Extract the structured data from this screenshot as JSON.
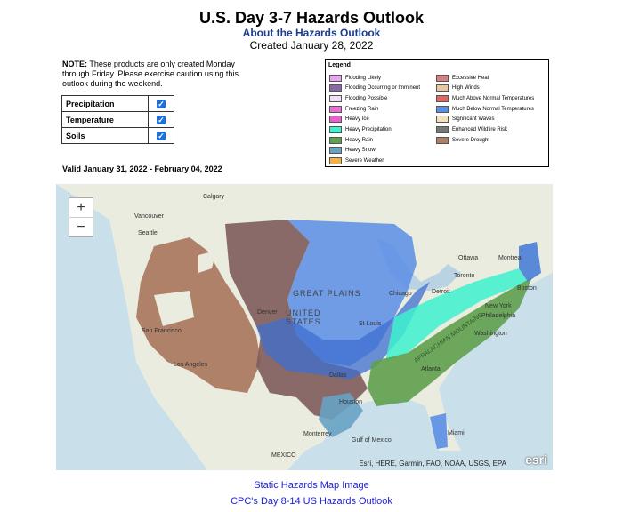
{
  "header": {
    "title": "U.S. Day 3-7 Hazards Outlook",
    "about_link": "About the Hazards Outlook",
    "created": "Created January 28, 2022"
  },
  "note": {
    "label": "NOTE:",
    "text": " These products are only created Monday through Friday. Please exercise caution using this outlook during the weekend."
  },
  "options": [
    {
      "label": "Precipitation",
      "checked": true
    },
    {
      "label": "Temperature",
      "checked": true
    },
    {
      "label": "Soils",
      "checked": true
    }
  ],
  "legend": {
    "title": "Legend",
    "items": [
      {
        "label": "Flooding Likely",
        "color": "#e6a6f0"
      },
      {
        "label": "Flooding Occurring or Imminent",
        "color": "#8c6aa8"
      },
      {
        "label": "Flooding Possible",
        "color": "#f3dff5"
      },
      {
        "label": "Freezing Rain",
        "color": "#e86fd6"
      },
      {
        "label": "Heavy Ice",
        "color": "#f05bd2"
      },
      {
        "label": "Heavy Precipitation",
        "color": "#3df2cf"
      },
      {
        "label": "Heavy Rain",
        "color": "#5fa04e"
      },
      {
        "label": "Heavy Snow",
        "color": "#68a3c4"
      },
      {
        "label": "Severe Weather",
        "color": "#f2b04a"
      },
      {
        "label": "Excessive Heat",
        "color": "#d98080"
      },
      {
        "label": "High Winds",
        "color": "#e8c8a0"
      },
      {
        "label": "Much Above Normal Temperatures",
        "color": "#e06666"
      },
      {
        "label": "Much Below Normal Temperatures",
        "color": "#5c8fe0"
      },
      {
        "label": "Significant Waves",
        "color": "#f5e0b8"
      },
      {
        "label": "Enhanced Wildfire Risk",
        "color": "#777777"
      },
      {
        "label": "Severe Drought",
        "color": "#b08060"
      }
    ]
  },
  "valid": "Valid January 31, 2022 - February 04, 2022",
  "map": {
    "zoom_in": "+",
    "zoom_out": "−",
    "attribution": "Esri, HERE, Garmin, FAO, NOAA, USGS, EPA",
    "esri_logo": "esri",
    "labels": {
      "calgary": "Calgary",
      "vancouver": "Vancouver",
      "seattle": "Seattle",
      "great_plains": "GREAT PLAINS",
      "united_states": "UNITED STATES",
      "denver": "Denver",
      "san_francisco": "San Francisco",
      "los_angeles": "Los Angeles",
      "dallas": "Dallas",
      "houston": "Houston",
      "monterrey": "Monterrey",
      "mexico": "MEXICO",
      "chicago": "Chicago",
      "st_louis": "St Louis",
      "detroit": "Detroit",
      "toronto": "Toronto",
      "ottawa": "Ottawa",
      "montreal": "Montreal",
      "boston": "Boston",
      "new_york": "New York",
      "philadelphia": "Philadelphia",
      "washington": "Washington",
      "atlanta": "Atlanta",
      "miami": "Miami",
      "gulf": "Gulf of Mexico",
      "appalachian": "APPALACHIAN MOUNTAINS"
    }
  },
  "links": {
    "static_image": "Static Hazards Map Image",
    "cpc_outlook": "CPC's Day 8-14 US Hazards Outlook"
  }
}
